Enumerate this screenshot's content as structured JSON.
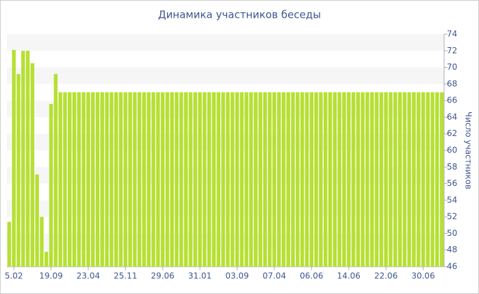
{
  "chart_data": {
    "type": "bar",
    "title": "Динамика участников беседы",
    "y_axis_label": "Число участников",
    "categories": [
      null,
      "5.02",
      null,
      null,
      null,
      null,
      null,
      null,
      null,
      "19.09",
      null,
      null,
      null,
      null,
      null,
      null,
      null,
      "23.04",
      null,
      null,
      null,
      null,
      null,
      null,
      null,
      "25.11",
      null,
      null,
      null,
      null,
      null,
      null,
      null,
      "29.06",
      null,
      null,
      null,
      null,
      null,
      null,
      null,
      "31.01",
      null,
      null,
      null,
      null,
      null,
      null,
      null,
      "03.09",
      null,
      null,
      null,
      null,
      null,
      null,
      null,
      "07.04",
      null,
      null,
      null,
      null,
      null,
      null,
      null,
      "06.06",
      null,
      null,
      null,
      null,
      null,
      null,
      null,
      "14.06",
      null,
      null,
      null,
      null,
      null,
      null,
      null,
      "22.06",
      null,
      null,
      null,
      null,
      null,
      null,
      null,
      "30.06",
      null,
      null,
      null,
      null
    ],
    "values": [
      51.4,
      72.1,
      69.2,
      72,
      72,
      70.5,
      57.1,
      52,
      47.8,
      65.6,
      69.2,
      67,
      67,
      67,
      67,
      67,
      67,
      67,
      67,
      67,
      67,
      67,
      67,
      67,
      67,
      67,
      67,
      67,
      67,
      67,
      67,
      67,
      67,
      67,
      67,
      67,
      67,
      67,
      67,
      67,
      67,
      67,
      67,
      67,
      67,
      67,
      67,
      67,
      67,
      67,
      67,
      67,
      67,
      67,
      67,
      67,
      67,
      67,
      67,
      67,
      67,
      67,
      67,
      67,
      67,
      67,
      67,
      67,
      67,
      67,
      67,
      67,
      67,
      67,
      67,
      67,
      67,
      67,
      67,
      67,
      67,
      67,
      67,
      67,
      67,
      67,
      67,
      67,
      67,
      67,
      67,
      67,
      67,
      67
    ],
    "color": "#b6e033",
    "ylim": [
      46,
      74
    ],
    "yticks": [
      46,
      48,
      50,
      52,
      54,
      56,
      58,
      60,
      62,
      64,
      66,
      68,
      70,
      72,
      74
    ],
    "grid": true
  }
}
